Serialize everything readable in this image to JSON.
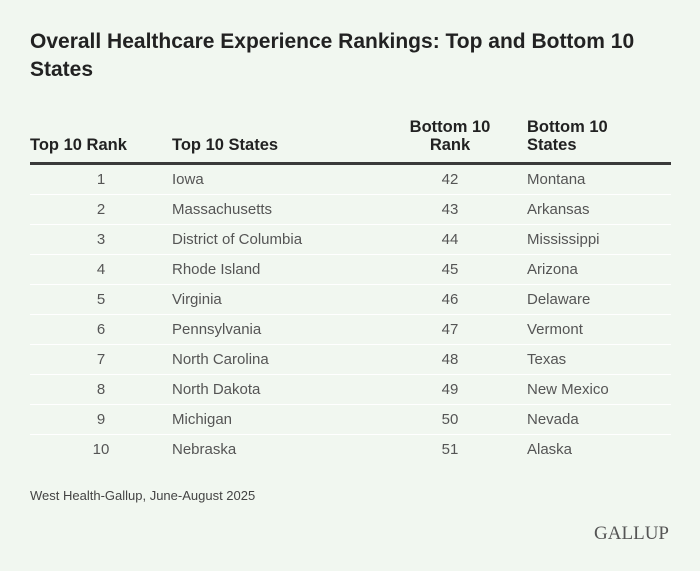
{
  "title": "Overall Healthcare Experience Rankings: Top and Bottom 10 States",
  "chart_data": {
    "type": "table",
    "title": "Overall Healthcare Experience Rankings: Top and Bottom 10 States",
    "columns": [
      "Top 10 Rank",
      "Top 10 States",
      "Bottom 10 Rank",
      "Bottom 10 States"
    ],
    "rows": [
      [
        "1",
        "Iowa",
        "42",
        "Montana"
      ],
      [
        "2",
        "Massachusetts",
        "43",
        "Arkansas"
      ],
      [
        "3",
        "District of Columbia",
        "44",
        "Mississippi"
      ],
      [
        "4",
        "Rhode Island",
        "45",
        "Arizona"
      ],
      [
        "5",
        "Virginia",
        "46",
        "Delaware"
      ],
      [
        "6",
        "Pennsylvania",
        "47",
        "Vermont"
      ],
      [
        "7",
        "North Carolina",
        "48",
        "Texas"
      ],
      [
        "8",
        "North Dakota",
        "49",
        "New Mexico"
      ],
      [
        "9",
        "Michigan",
        "50",
        "Nevada"
      ],
      [
        "10",
        "Nebraska",
        "51",
        "Alaska"
      ]
    ]
  },
  "source": "West Health-Gallup, June-August 2025",
  "logo": "GALLUP",
  "colors": {
    "background": "#f1f7f0",
    "header_rule": "#3a3a3a",
    "row_divider": "#ffffff"
  }
}
